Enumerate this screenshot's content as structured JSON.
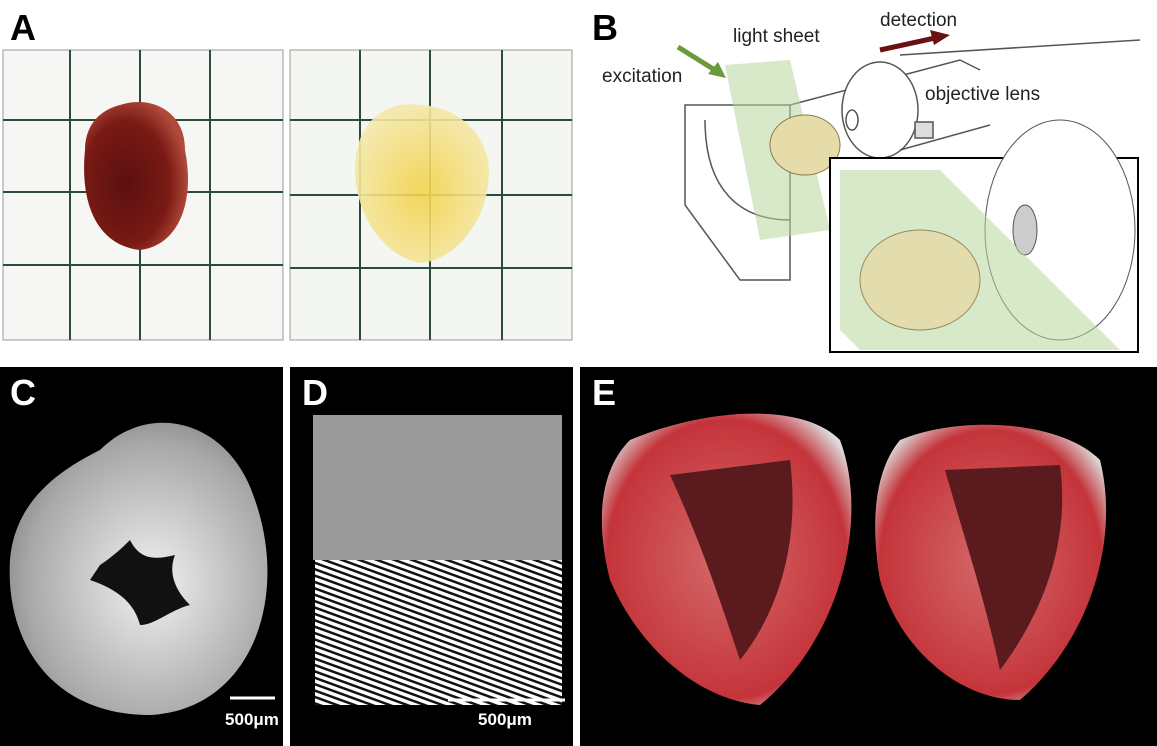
{
  "panels": [
    {
      "label": "A"
    },
    {
      "label": "B",
      "annotations": [
        "excitation",
        "light sheet",
        "detection",
        "objective lens"
      ]
    },
    {
      "label": "C",
      "scale_bar": "500μm"
    },
    {
      "label": "D",
      "scale_bar": "500μm"
    },
    {
      "label": "E"
    }
  ]
}
